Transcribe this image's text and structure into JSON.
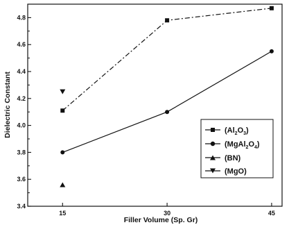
{
  "chart_data": {
    "type": "scatter",
    "title": "",
    "xlabel": "Filler Volume (Sp. Gr)",
    "ylabel": "Dielectric Constant",
    "x_ticks": [
      15,
      30,
      45
    ],
    "x_tick_labels": [
      "15",
      "30",
      "45"
    ],
    "xlim": [
      10,
      46.5
    ],
    "ylim": [
      3.4,
      4.9
    ],
    "y_ticks": [
      3.4,
      3.6,
      3.8,
      4.0,
      4.2,
      4.4,
      4.6,
      4.8
    ],
    "y_tick_labels": [
      "3.4",
      "3.6",
      "3.8",
      "4.0",
      "4.2",
      "4.4",
      "4.6",
      "4.8"
    ],
    "grid": false,
    "legend_position": "bottom-right",
    "series": [
      {
        "name": "(Al2O3)",
        "marker": "square",
        "line": "dash-dot",
        "x": [
          15,
          30,
          45
        ],
        "y": [
          4.11,
          4.78,
          4.87
        ]
      },
      {
        "name": "(MgAl2O4)",
        "marker": "circle",
        "line": "solid",
        "x": [
          15,
          30,
          45
        ],
        "y": [
          3.8,
          4.1,
          4.55
        ]
      },
      {
        "name": "(BN)",
        "marker": "triangle-up",
        "line": "none",
        "x": [
          15
        ],
        "y": [
          3.56
        ]
      },
      {
        "name": "(MgO)",
        "marker": "triangle-down",
        "line": "none",
        "x": [
          15
        ],
        "y": [
          4.25
        ]
      }
    ]
  }
}
